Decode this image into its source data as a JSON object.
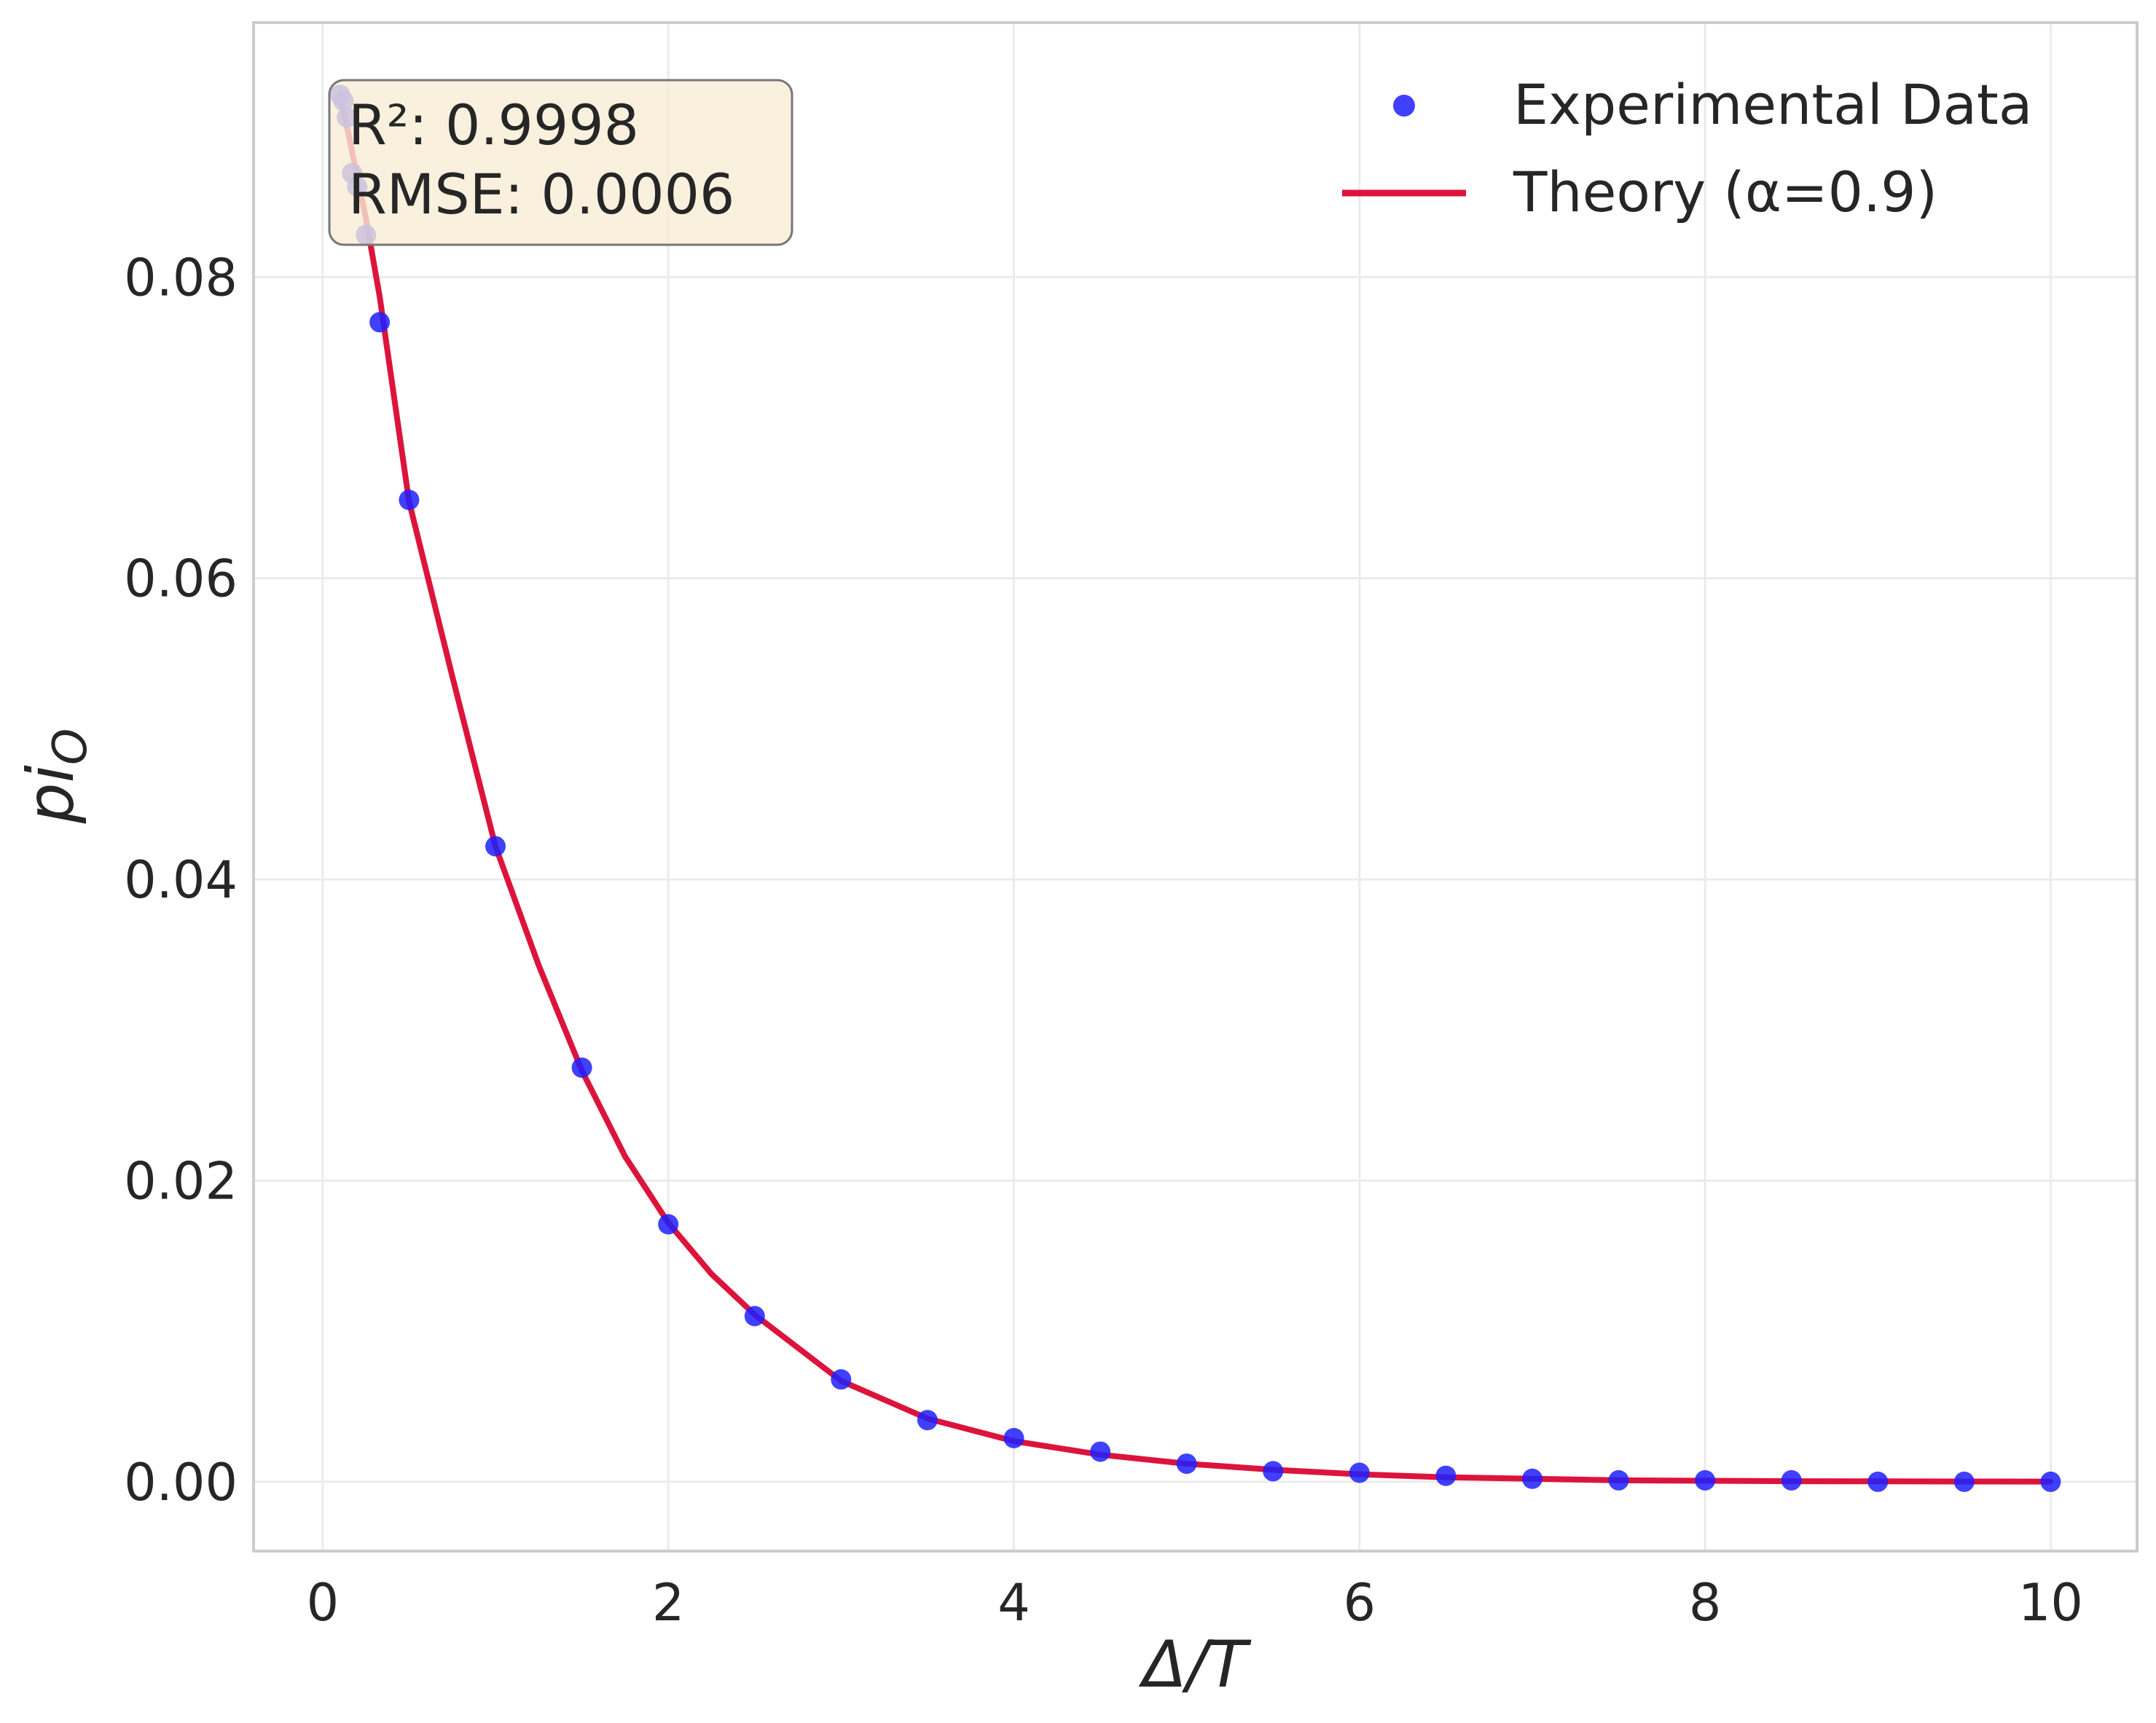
{
  "chart_data": {
    "type": "scatter",
    "title": "",
    "xlabel": "Δ/T",
    "ylabel": "pi_O",
    "ylabel_main": "pi",
    "ylabel_sub": "O",
    "xlim": [
      -0.4,
      10.5
    ],
    "ylim": [
      -0.0046,
      0.0969
    ],
    "xticks": [
      0,
      2,
      4,
      6,
      8,
      10
    ],
    "xtick_labels": [
      "0",
      "2",
      "4",
      "6",
      "8",
      "10"
    ],
    "yticks": [
      0.0,
      0.02,
      0.04,
      0.06,
      0.08
    ],
    "ytick_labels": [
      "0.00",
      "0.02",
      "0.04",
      "0.06",
      "0.08"
    ],
    "grid": true,
    "legend_position": "top-right",
    "series": [
      {
        "name": "Experimental Data",
        "kind": "scatter",
        "color": "#1f1fff",
        "x": [
          0.1,
          0.12,
          0.14,
          0.17,
          0.2,
          0.25,
          0.33,
          0.5,
          1.0,
          1.5,
          2.0,
          2.5,
          3.0,
          3.5,
          4.0,
          4.5,
          5.0,
          5.5,
          6.0,
          6.5,
          7.0,
          7.5,
          8.0,
          8.5,
          9.0,
          9.5,
          10.0
        ],
        "y": [
          0.0921,
          0.0917,
          0.0906,
          0.0869,
          0.086,
          0.0828,
          0.077,
          0.0652,
          0.0422,
          0.0275,
          0.0171,
          0.011,
          0.0068,
          0.0041,
          0.0029,
          0.002,
          0.0012,
          0.0007,
          0.0006,
          0.0004,
          0.0002,
          0.0001,
          0.0001,
          0.0001,
          0.0,
          0.0,
          0.0
        ]
      },
      {
        "name": "Theory (α=0.9)",
        "kind": "line",
        "color": "#dc143c",
        "x": [
          0.1,
          0.15,
          0.2,
          0.25,
          0.33,
          0.5,
          0.75,
          1.0,
          1.25,
          1.5,
          1.75,
          2.0,
          2.25,
          2.5,
          3.0,
          3.5,
          4.0,
          4.5,
          5.0,
          5.5,
          6.0,
          6.5,
          7.0,
          7.5,
          8.0,
          8.5,
          9.0,
          9.5,
          10.0
        ],
        "y": [
          0.092,
          0.0895,
          0.0866,
          0.0839,
          0.0787,
          0.0651,
          0.0535,
          0.0422,
          0.0343,
          0.0273,
          0.0216,
          0.0172,
          0.0138,
          0.0111,
          0.0067,
          0.0042,
          0.0027,
          0.0018,
          0.0012,
          0.0008,
          0.0005,
          0.0003,
          0.0002,
          0.0001,
          7e-05,
          4e-05,
          3e-05,
          2e-05,
          1e-05
        ]
      }
    ],
    "annotations": {
      "r2": "R²: 0.9998",
      "rmse": "RMSE: 0.0006"
    }
  },
  "colors": {
    "grid": "#ebebeb",
    "spine": "#cccccc",
    "stats_box_fill": "#f8ecd6",
    "stats_box_edge": "#777777"
  }
}
